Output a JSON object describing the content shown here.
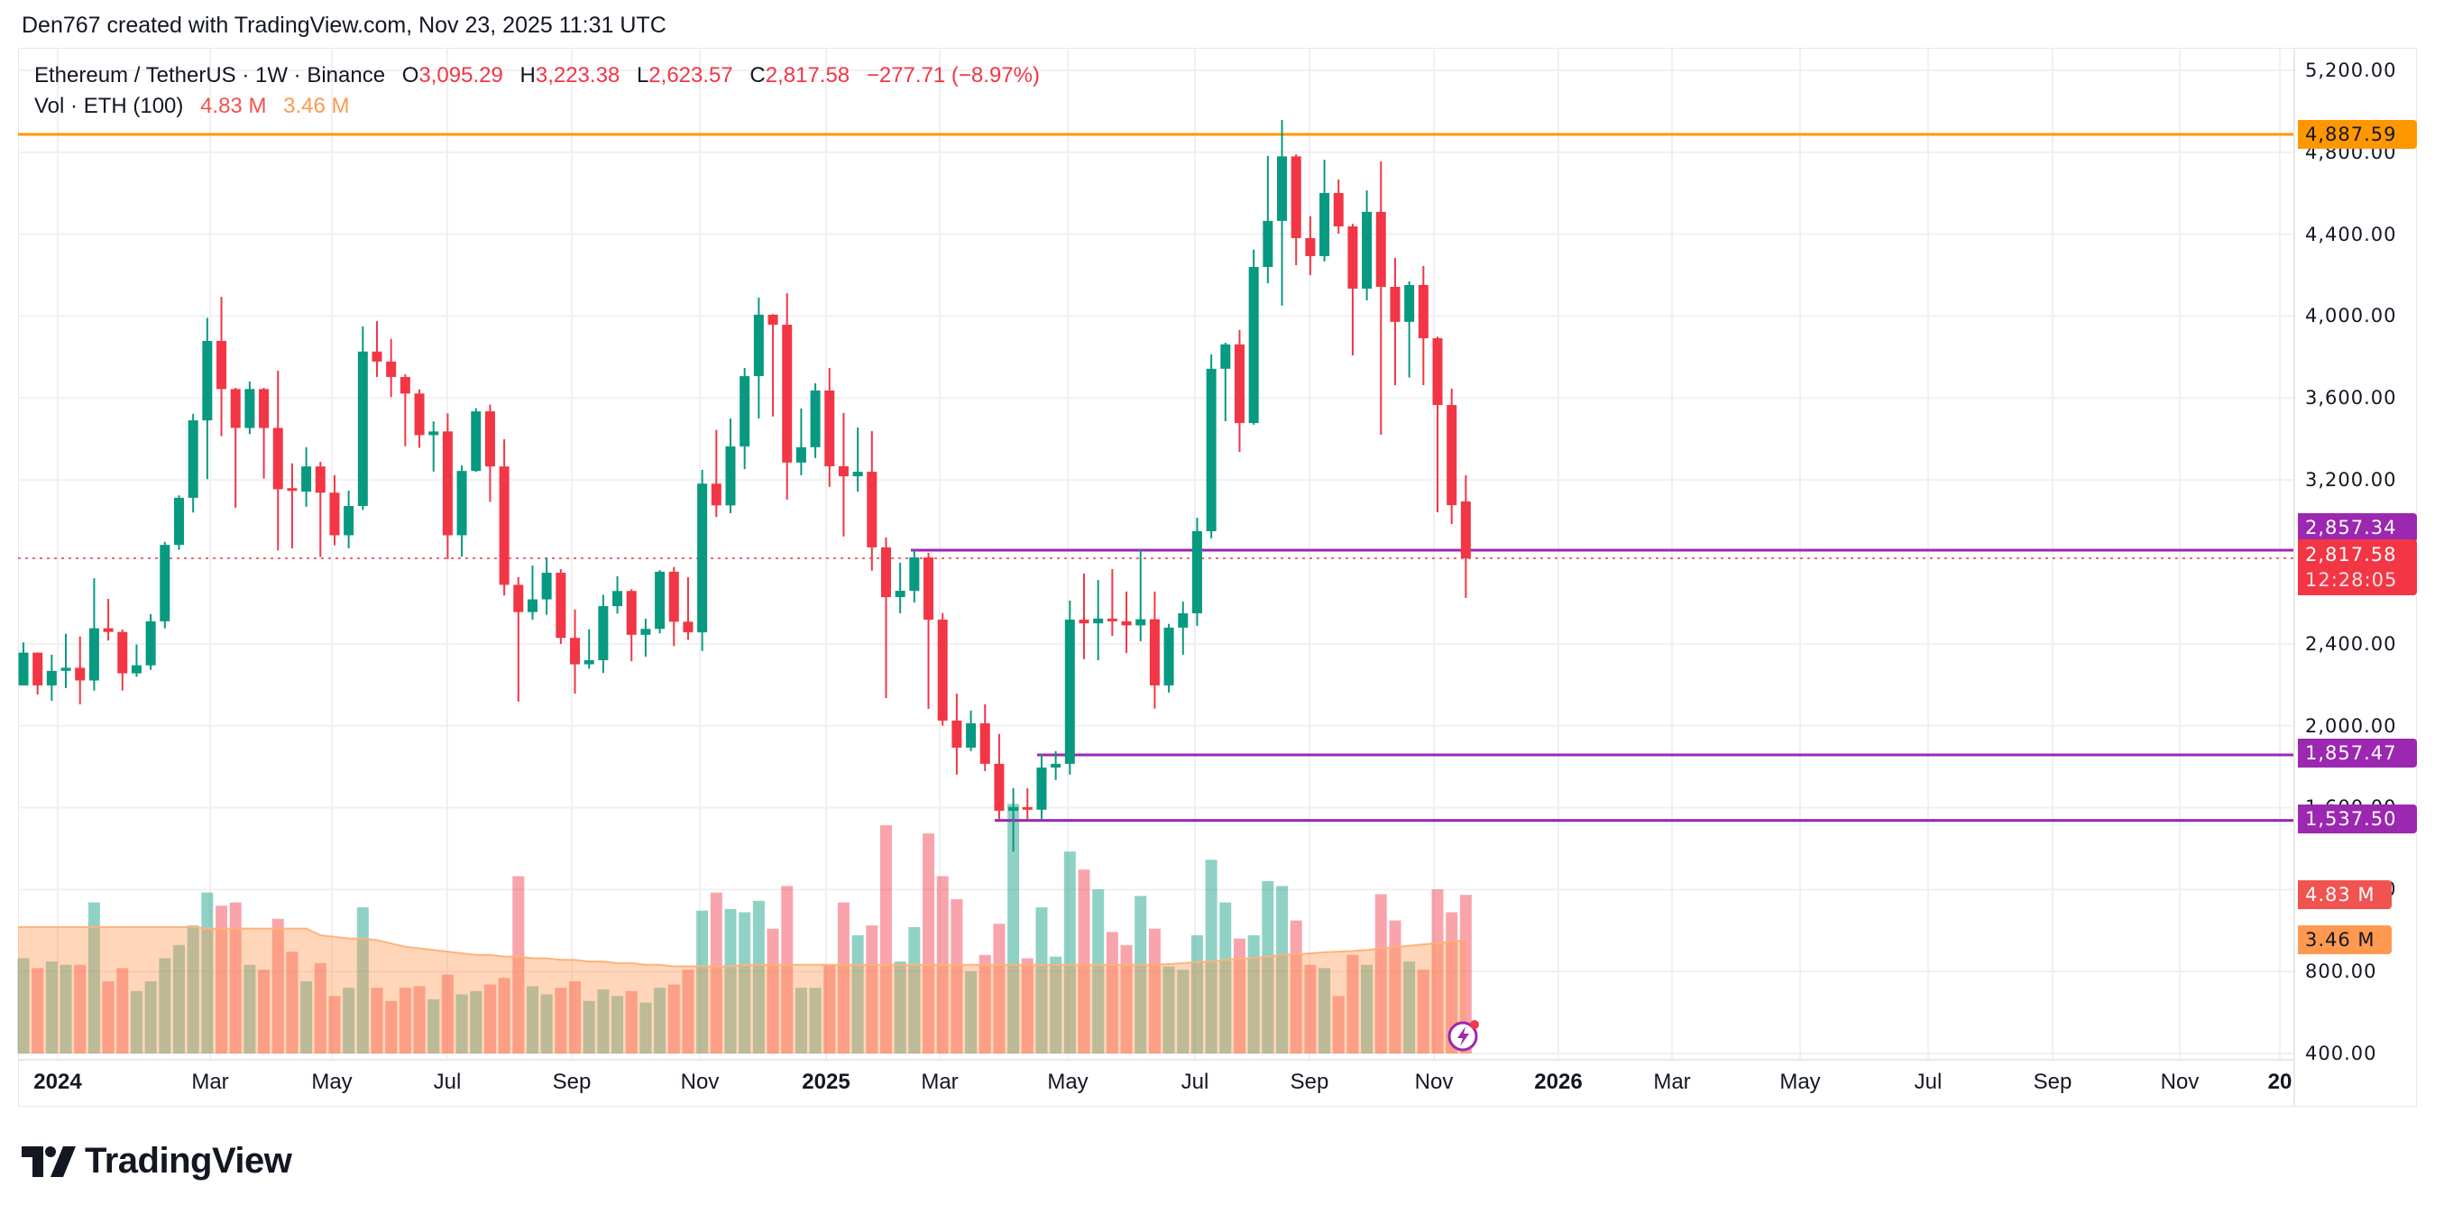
{
  "header": {
    "text": "Den767 created with TradingView.com, Nov 23, 2025 11:31 UTC"
  },
  "legend": {
    "symbol": "Ethereum / TetherUS · 1W · Binance",
    "o_label": "O",
    "o_value": "3,095.29",
    "h_label": "H",
    "h_value": "3,223.38",
    "l_label": "L",
    "l_value": "2,623.57",
    "c_label": "C",
    "c_value": "2,817.58",
    "change": "−277.71 (−8.97%)",
    "vol_label": "Vol · ETH (100)",
    "vol_value": "4.83 M",
    "vol_ma_value": "3.46 M"
  },
  "badges": {
    "resistance_top": "4,887.59",
    "level_1": "2,857.34",
    "last_price": "2,817.58",
    "countdown": "12:28:05",
    "level_2": "1,857.47",
    "level_3": "1,537.50",
    "volume": "4.83 M",
    "volume_ma": "3.46 M"
  },
  "branding": {
    "logo_text": "TradingView"
  },
  "colors": {
    "up": "#089981",
    "down": "#F23645",
    "resistance": "#FF9800",
    "levels": "#9C27B0",
    "volume_ma": "#FF9850",
    "volume_badge": "#F05350"
  },
  "chart_data": {
    "type": "candlestick",
    "title": "Ethereum / TetherUS · 1W · Binance",
    "y_axis": {
      "position": "right",
      "range": [
        400,
        5200
      ],
      "tick_labels": [
        "5,200.00",
        "4,800.00",
        "4,400.00",
        "4,000.00",
        "3,600.00",
        "3,200.00",
        "2,400.00",
        "2,000.00",
        "1,600.00",
        "1,200.00",
        "800.00",
        "400.00"
      ],
      "ticks": [
        5200,
        4800,
        4400,
        4000,
        3600,
        3200,
        2400,
        2000,
        1600,
        1200,
        800,
        400
      ]
    },
    "x_axis": {
      "tick_labels": [
        "2024",
        "Mar",
        "May",
        "Jul",
        "Sep",
        "Nov",
        "2025",
        "Mar",
        "May",
        "Jul",
        "Sep",
        "Nov",
        "2026",
        "Mar",
        "May",
        "Jul",
        "Sep",
        "Nov",
        "20"
      ]
    },
    "grid": true,
    "horizontal_lines": [
      {
        "price": 4887.59,
        "color": "#FF9800"
      },
      {
        "price": 2857.34,
        "color": "#9C27B0"
      },
      {
        "price": 1857.47,
        "color": "#9C27B0"
      },
      {
        "price": 1537.5,
        "color": "#9C27B0"
      }
    ],
    "last_price_line": 2817.58,
    "candle_fields": [
      "week",
      "open",
      "high",
      "low",
      "close",
      "volume_millions"
    ],
    "candles": [
      [
        "2023-12-04",
        2197,
        2407,
        2197,
        2357,
        2.9
      ],
      [
        "2023-12-11",
        2357,
        2357,
        2152,
        2197,
        2.6
      ],
      [
        "2023-12-18",
        2197,
        2347,
        2122,
        2268,
        2.8
      ],
      [
        "2023-12-25",
        2268,
        2449,
        2184,
        2283,
        2.7
      ],
      [
        "2024-01-01",
        2283,
        2436,
        2105,
        2221,
        2.7
      ],
      [
        "2024-01-08",
        2221,
        2720,
        2172,
        2476,
        4.6
      ],
      [
        "2024-01-15",
        2476,
        2619,
        2416,
        2458,
        2.2
      ],
      [
        "2024-01-22",
        2458,
        2470,
        2172,
        2256,
        2.6
      ],
      [
        "2024-01-29",
        2256,
        2397,
        2239,
        2295,
        1.9
      ],
      [
        "2024-02-05",
        2295,
        2545,
        2273,
        2510,
        2.2
      ],
      [
        "2024-02-12",
        2510,
        2898,
        2476,
        2883,
        2.9
      ],
      [
        "2024-02-19",
        2883,
        3125,
        2859,
        3113,
        3.3
      ],
      [
        "2024-02-26",
        3113,
        3523,
        3041,
        3491,
        3.9
      ],
      [
        "2024-03-04",
        3491,
        3992,
        3204,
        3879,
        4.9
      ],
      [
        "2024-03-11",
        3879,
        4094,
        3414,
        3644,
        4.5
      ],
      [
        "2024-03-18",
        3644,
        3650,
        3064,
        3454,
        4.6
      ],
      [
        "2024-03-25",
        3454,
        3681,
        3424,
        3644,
        2.7
      ],
      [
        "2024-04-01",
        3644,
        3650,
        3207,
        3454,
        2.55
      ],
      [
        "2024-04-08",
        3454,
        3733,
        2856,
        3155,
        4.1
      ],
      [
        "2024-04-15",
        3160,
        3281,
        2866,
        3155,
        3.1
      ],
      [
        "2024-04-22",
        3143,
        3360,
        3069,
        3266,
        2.2
      ],
      [
        "2024-04-29",
        3266,
        3289,
        2824,
        3138,
        2.75
      ],
      [
        "2024-05-06",
        3138,
        3224,
        2881,
        2930,
        1.75
      ],
      [
        "2024-05-13",
        2930,
        3148,
        2866,
        3073,
        2.0
      ],
      [
        "2024-05-20",
        3073,
        3950,
        3054,
        3827,
        4.45
      ],
      [
        "2024-05-27",
        3827,
        3975,
        3703,
        3778,
        2.0
      ],
      [
        "2024-06-03",
        3778,
        3889,
        3605,
        3703,
        1.6
      ],
      [
        "2024-06-10",
        3703,
        3716,
        3365,
        3622,
        2.0
      ],
      [
        "2024-06-17",
        3622,
        3642,
        3357,
        3419,
        2.05
      ],
      [
        "2024-06-24",
        3419,
        3486,
        3241,
        3437,
        1.65
      ],
      [
        "2024-07-01",
        3437,
        3525,
        2814,
        2930,
        2.4
      ],
      [
        "2024-07-08",
        2930,
        3271,
        2826,
        3244,
        1.8
      ],
      [
        "2024-07-15",
        3244,
        3550,
        3239,
        3535,
        1.9
      ],
      [
        "2024-07-22",
        3535,
        3568,
        3093,
        3266,
        2.1
      ],
      [
        "2024-07-29",
        3266,
        3399,
        2636,
        2688,
        2.3
      ],
      [
        "2024-08-05",
        2688,
        2725,
        2118,
        2555,
        5.4
      ],
      [
        "2024-08-12",
        2555,
        2782,
        2518,
        2617,
        2.05
      ],
      [
        "2024-08-19",
        2617,
        2822,
        2542,
        2747,
        1.8
      ],
      [
        "2024-08-26",
        2747,
        2765,
        2399,
        2429,
        2.0
      ],
      [
        "2024-09-02",
        2429,
        2567,
        2157,
        2300,
        2.2
      ],
      [
        "2024-09-09",
        2300,
        2471,
        2278,
        2320,
        1.6
      ],
      [
        "2024-09-16",
        2320,
        2639,
        2258,
        2584,
        1.95
      ],
      [
        "2024-09-23",
        2584,
        2730,
        2547,
        2658,
        1.75
      ],
      [
        "2024-09-30",
        2658,
        2666,
        2315,
        2444,
        1.9
      ],
      [
        "2024-10-07",
        2444,
        2523,
        2337,
        2473,
        1.55
      ],
      [
        "2024-10-14",
        2473,
        2760,
        2451,
        2752,
        2.0
      ],
      [
        "2024-10-21",
        2752,
        2775,
        2389,
        2508,
        2.1
      ],
      [
        "2024-10-28",
        2508,
        2725,
        2419,
        2456,
        2.55
      ],
      [
        "2024-11-04",
        2456,
        3249,
        2365,
        3182,
        4.35
      ],
      [
        "2024-11-11",
        3182,
        3444,
        3019,
        3076,
        4.9
      ],
      [
        "2024-11-18",
        3076,
        3500,
        3038,
        3364,
        4.4
      ],
      [
        "2024-11-25",
        3364,
        3747,
        3253,
        3707,
        4.3
      ],
      [
        "2024-12-02",
        3707,
        4090,
        3500,
        4007,
        4.65
      ],
      [
        "2024-12-09",
        4007,
        4010,
        3510,
        3958,
        3.8
      ],
      [
        "2024-12-16",
        3958,
        4112,
        3104,
        3285,
        5.1
      ],
      [
        "2024-12-23",
        3285,
        3549,
        3223,
        3360,
        2.0
      ],
      [
        "2024-12-30",
        3360,
        3672,
        3307,
        3637,
        2.0
      ],
      [
        "2025-01-06",
        3637,
        3747,
        3166,
        3267,
        2.7
      ],
      [
        "2025-01-13",
        3267,
        3527,
        2924,
        3218,
        4.6
      ],
      [
        "2025-01-20",
        3218,
        3456,
        3143,
        3240,
        3.6
      ],
      [
        "2025-01-27",
        3240,
        3439,
        2757,
        2871,
        3.9
      ],
      [
        "2025-02-03",
        2871,
        2919,
        2135,
        2628,
        6.95
      ],
      [
        "2025-02-10",
        2628,
        2796,
        2549,
        2659,
        2.8
      ],
      [
        "2025-02-17",
        2659,
        2857,
        2602,
        2822,
        3.85
      ],
      [
        "2025-02-24",
        2822,
        2844,
        2082,
        2518,
        6.7
      ],
      [
        "2025-03-03",
        2518,
        2550,
        2000,
        2025,
        5.4
      ],
      [
        "2025-03-10",
        2025,
        2157,
        1761,
        1893,
        4.7
      ],
      [
        "2025-03-17",
        1893,
        2074,
        1876,
        2012,
        2.5
      ],
      [
        "2025-03-24",
        2012,
        2105,
        1779,
        1814,
        3.0
      ],
      [
        "2025-03-31",
        1814,
        1960,
        1541,
        1585,
        3.95
      ],
      [
        "2025-04-07",
        1585,
        1695,
        1385,
        1603,
        7.6
      ],
      [
        "2025-04-14",
        1603,
        1695,
        1541,
        1590,
        2.9
      ],
      [
        "2025-04-21",
        1590,
        1862,
        1541,
        1796,
        4.45
      ],
      [
        "2025-04-28",
        1796,
        1876,
        1735,
        1814,
        2.95
      ],
      [
        "2025-05-05",
        1814,
        2611,
        1761,
        2518,
        6.15
      ],
      [
        "2025-05-12",
        2518,
        2743,
        2325,
        2500,
        5.6
      ],
      [
        "2025-05-19",
        2500,
        2712,
        2320,
        2523,
        5.0
      ],
      [
        "2025-05-26",
        2523,
        2765,
        2439,
        2510,
        3.7
      ],
      [
        "2025-06-02",
        2510,
        2655,
        2356,
        2490,
        3.3
      ],
      [
        "2025-06-09",
        2490,
        2858,
        2413,
        2520,
        4.8
      ],
      [
        "2025-06-16",
        2520,
        2655,
        2083,
        2197,
        3.8
      ],
      [
        "2025-06-23",
        2197,
        2497,
        2162,
        2479,
        2.65
      ],
      [
        "2025-06-30",
        2479,
        2606,
        2347,
        2549,
        2.55
      ],
      [
        "2025-07-07",
        2549,
        3016,
        2488,
        2950,
        3.6
      ],
      [
        "2025-07-14",
        2950,
        3813,
        2915,
        3743,
        5.9
      ],
      [
        "2025-07-21",
        3743,
        3870,
        3487,
        3862,
        4.6
      ],
      [
        "2025-07-28",
        3862,
        3932,
        3337,
        3478,
        3.5
      ],
      [
        "2025-08-04",
        3478,
        4324,
        3470,
        4240,
        3.6
      ],
      [
        "2025-08-11",
        4240,
        4782,
        4160,
        4465,
        5.25
      ],
      [
        "2025-08-18",
        4465,
        4958,
        4051,
        4780,
        5.1
      ],
      [
        "2025-08-25",
        4780,
        4790,
        4249,
        4381,
        4.05
      ],
      [
        "2025-09-01",
        4381,
        4487,
        4200,
        4293,
        2.7
      ],
      [
        "2025-09-08",
        4293,
        4764,
        4267,
        4601,
        2.6
      ],
      [
        "2025-09-15",
        4601,
        4667,
        4403,
        4438,
        1.75
      ],
      [
        "2025-09-22",
        4438,
        4450,
        3808,
        4134,
        3.0
      ],
      [
        "2025-09-29",
        4134,
        4614,
        4077,
        4509,
        2.7
      ],
      [
        "2025-10-06",
        4509,
        4755,
        3421,
        4143,
        4.85
      ],
      [
        "2025-10-13",
        4143,
        4284,
        3663,
        3972,
        4.05
      ],
      [
        "2025-10-20",
        3972,
        4170,
        3700,
        4152,
        2.8
      ],
      [
        "2025-10-27",
        4152,
        4245,
        3663,
        3892,
        2.55
      ],
      [
        "2025-11-03",
        3892,
        3900,
        3042,
        3566,
        5.0
      ],
      [
        "2025-11-10",
        3566,
        3646,
        2985,
        3077,
        4.3
      ],
      [
        "2025-11-17",
        3095.29,
        3223.38,
        2623.57,
        2817.58,
        4.83
      ]
    ],
    "volume_ma": [
      3.85,
      3.85,
      3.85,
      3.85,
      3.85,
      3.85,
      3.85,
      3.85,
      3.85,
      3.85,
      3.85,
      3.85,
      3.85,
      3.8,
      3.8,
      3.8,
      3.8,
      3.8,
      3.8,
      3.8,
      3.8,
      3.6,
      3.55,
      3.5,
      3.5,
      3.45,
      3.35,
      3.25,
      3.2,
      3.15,
      3.1,
      3.05,
      3.0,
      3.0,
      2.95,
      2.95,
      2.9,
      2.9,
      2.85,
      2.85,
      2.8,
      2.8,
      2.75,
      2.75,
      2.7,
      2.7,
      2.65,
      2.65,
      2.65,
      2.65,
      2.65,
      2.7,
      2.7,
      2.7,
      2.7,
      2.7,
      2.7,
      2.7,
      2.7,
      2.7,
      2.7,
      2.7,
      2.7,
      2.7,
      2.7,
      2.7,
      2.7,
      2.7,
      2.7,
      2.7,
      2.7,
      2.7,
      2.7,
      2.7,
      2.7,
      2.7,
      2.7,
      2.7,
      2.7,
      2.7,
      2.7,
      2.72,
      2.75,
      2.78,
      2.8,
      2.85,
      2.88,
      2.9,
      2.95,
      3.0,
      3.02,
      3.05,
      3.08,
      3.1,
      3.12,
      3.15,
      3.2,
      3.24,
      3.28,
      3.32,
      3.36,
      3.41,
      3.46
    ]
  }
}
